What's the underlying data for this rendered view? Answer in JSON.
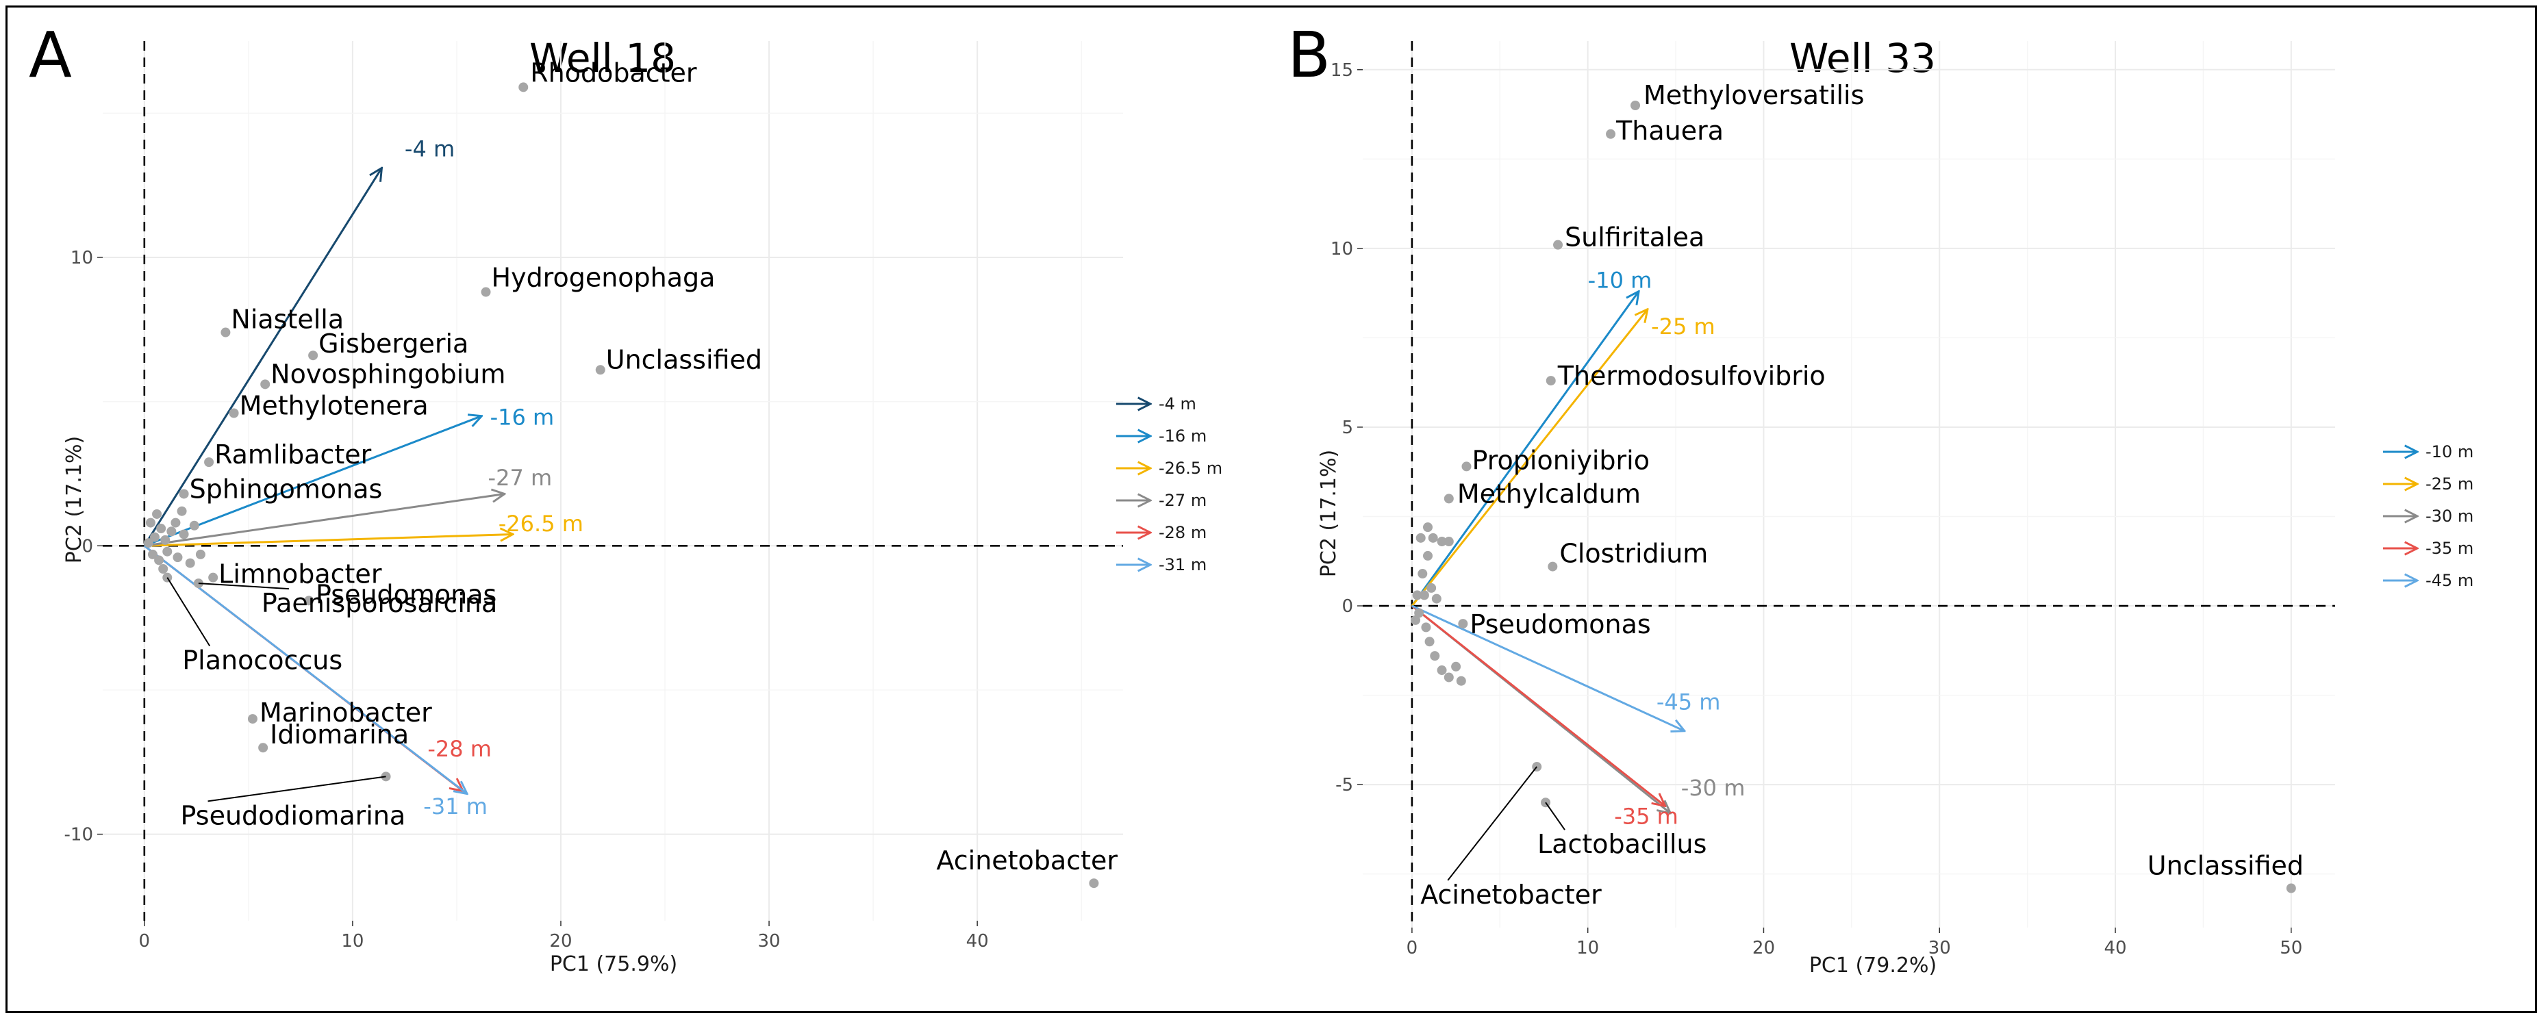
{
  "chart_data": [
    {
      "type": "scatter",
      "panel": "A",
      "title": "Well 18",
      "xlabel": "PC1 (75.9%)",
      "ylabel": "PC2 (17.1%)",
      "xlim": [
        -2,
        47
      ],
      "ylim": [
        -13,
        17.5
      ],
      "xticks": [
        0,
        10,
        20,
        30,
        40
      ],
      "yticks": [
        -10,
        0,
        10
      ],
      "grid": true,
      "legend_position": "right",
      "points": [
        {
          "label": "Rhodobacter",
          "x": 18.2,
          "y": 15.9
        },
        {
          "label": "Hydrogenophaga",
          "x": 16.4,
          "y": 8.8
        },
        {
          "label": "Unclassified",
          "x": 21.9,
          "y": 6.1
        },
        {
          "label": "Niastella",
          "x": 3.9,
          "y": 7.4
        },
        {
          "label": "Gisbergeria",
          "x": 8.1,
          "y": 6.6
        },
        {
          "label": "Novosphingobium",
          "x": 5.8,
          "y": 5.6
        },
        {
          "label": "Methylotenera",
          "x": 4.3,
          "y": 4.6
        },
        {
          "label": "Ramlibacter",
          "x": 3.1,
          "y": 2.9
        },
        {
          "label": "Sphingomonas",
          "x": 1.9,
          "y": 1.8
        },
        {
          "label": "Limnobacter",
          "x": 3.3,
          "y": -1.1
        },
        {
          "label": "Pseudomonas",
          "x": 7.9,
          "y": -1.9
        },
        {
          "label": "Paenisporosarcina",
          "x": 2.6,
          "y": -1.3
        },
        {
          "label": "Planococcus",
          "x": 1.1,
          "y": -1.1
        },
        {
          "label": "Marinobacter",
          "x": 5.2,
          "y": -6.0
        },
        {
          "label": "Idiomarina",
          "x": 5.7,
          "y": -7.0
        },
        {
          "label": "Pseudodiomarina",
          "x": 11.6,
          "y": -8.0
        },
        {
          "label": "Acinetobacter",
          "x": 45.6,
          "y": -11.7
        }
      ],
      "unlabeled_points": [
        [
          0.2,
          0.1
        ],
        [
          0.5,
          0.3
        ],
        [
          0.8,
          0.6
        ],
        [
          1.0,
          0.2
        ],
        [
          1.3,
          0.5
        ],
        [
          0.4,
          -0.3
        ],
        [
          0.7,
          -0.5
        ],
        [
          1.1,
          -0.2
        ],
        [
          0.3,
          0.8
        ],
        [
          1.5,
          0.8
        ],
        [
          1.9,
          0.4
        ],
        [
          2.4,
          0.7
        ],
        [
          1.6,
          -0.4
        ],
        [
          2.2,
          -0.6
        ],
        [
          0.6,
          1.1
        ],
        [
          2.7,
          -0.3
        ],
        [
          0.9,
          -0.8
        ],
        [
          1.8,
          1.2
        ]
      ],
      "vectors": [
        {
          "name": "-4 m",
          "x": 11.4,
          "y": 13.1,
          "color": "#17496e"
        },
        {
          "name": "-16 m",
          "x": 16.2,
          "y": 4.5,
          "color": "#1b8ac9"
        },
        {
          "name": "-26.5 m",
          "x": 17.7,
          "y": 0.4,
          "color": "#f4b400"
        },
        {
          "name": "-27 m",
          "x": 17.3,
          "y": 1.8,
          "color": "#8a8a8a"
        },
        {
          "name": "-28 m",
          "x": 15.3,
          "y": -8.5,
          "color": "#e8504a"
        },
        {
          "name": "-31 m",
          "x": 15.5,
          "y": -8.6,
          "color": "#62a9e3"
        }
      ],
      "vector_labels": [
        {
          "name": "-4 m",
          "x": 12.5,
          "y": 13.5
        },
        {
          "name": "-16 m",
          "x": 16.6,
          "y": 4.2
        },
        {
          "name": "-26.5 m",
          "x": 17.0,
          "y": 0.5
        },
        {
          "name": "-27 m",
          "x": 16.5,
          "y": 2.1
        },
        {
          "name": "-28 m",
          "x": 13.6,
          "y": -7.3
        },
        {
          "name": "-31 m",
          "x": 13.4,
          "y": -9.3
        }
      ],
      "legend": [
        "-4 m",
        "-16 m",
        "-26.5 m",
        "-27 m",
        "-28 m",
        "-31 m"
      ]
    },
    {
      "type": "scatter",
      "panel": "B",
      "title": "Well 33",
      "xlabel": "PC1 (79.2%)",
      "ylabel": "PC2 (17.1%)",
      "xlim": [
        -2.8,
        52.5
      ],
      "ylim": [
        -9,
        15.8
      ],
      "xticks": [
        0,
        10,
        20,
        30,
        40,
        50
      ],
      "yticks": [
        -5,
        0,
        5,
        10,
        15
      ],
      "grid": true,
      "legend_position": "right",
      "points": [
        {
          "label": "Methyloversatilis",
          "x": 12.7,
          "y": 14.0
        },
        {
          "label": "Thauera",
          "x": 11.3,
          "y": 13.2
        },
        {
          "label": "Sulfiritalea",
          "x": 8.3,
          "y": 10.1
        },
        {
          "label": "Thermodosulfovibrio",
          "x": 7.9,
          "y": 6.3
        },
        {
          "label": "Propioniyibrio",
          "x": 3.1,
          "y": 3.9
        },
        {
          "label": "Methylcaldum",
          "x": 2.1,
          "y": 3.0
        },
        {
          "label": "Clostridium",
          "x": 8.0,
          "y": 1.1
        },
        {
          "label": "Pseudomonas",
          "x": 2.9,
          "y": -0.5
        },
        {
          "label": "Lactobacillus",
          "x": 7.6,
          "y": -5.5
        },
        {
          "label": "Acinetobacter",
          "x": 7.1,
          "y": -4.5
        },
        {
          "label": "Unclassified",
          "x": 50.0,
          "y": -7.9
        }
      ],
      "unlabeled_points": [
        [
          0.3,
          0.3
        ],
        [
          0.6,
          0.9
        ],
        [
          0.9,
          1.4
        ],
        [
          1.2,
          1.9
        ],
        [
          1.7,
          1.8
        ],
        [
          2.1,
          1.8
        ],
        [
          0.4,
          -0.2
        ],
        [
          0.8,
          -0.6
        ],
        [
          1.0,
          -1.0
        ],
        [
          1.3,
          -1.4
        ],
        [
          1.7,
          -1.8
        ],
        [
          2.1,
          -2.0
        ],
        [
          2.5,
          -1.7
        ],
        [
          2.8,
          -2.1
        ],
        [
          0.2,
          -0.4
        ],
        [
          0.7,
          0.3
        ],
        [
          1.1,
          0.5
        ],
        [
          0.5,
          1.9
        ],
        [
          0.9,
          2.2
        ],
        [
          1.4,
          0.2
        ]
      ],
      "vectors": [
        {
          "name": "-10 m",
          "x": 12.9,
          "y": 8.8,
          "color": "#1b8ac9"
        },
        {
          "name": "-25 m",
          "x": 13.4,
          "y": 8.3,
          "color": "#f4b400"
        },
        {
          "name": "-30 m",
          "x": 14.7,
          "y": -5.8,
          "color": "#8a8a8a"
        },
        {
          "name": "-35 m",
          "x": 14.4,
          "y": -5.6,
          "color": "#e8504a"
        },
        {
          "name": "-45 m",
          "x": 15.5,
          "y": -3.5,
          "color": "#62a9e3"
        }
      ],
      "vector_labels": [
        {
          "name": "-10 m",
          "x": 10.0,
          "y": 8.9
        },
        {
          "name": "-25 m",
          "x": 13.6,
          "y": 7.6
        },
        {
          "name": "-30 m",
          "x": 15.3,
          "y": -5.3
        },
        {
          "name": "-35 m",
          "x": 11.5,
          "y": -6.1
        },
        {
          "name": "-45 m",
          "x": 13.9,
          "y": -2.9
        }
      ],
      "legend": [
        "-10 m",
        "-25 m",
        "-30 m",
        "-35 m",
        "-45 m"
      ]
    }
  ]
}
